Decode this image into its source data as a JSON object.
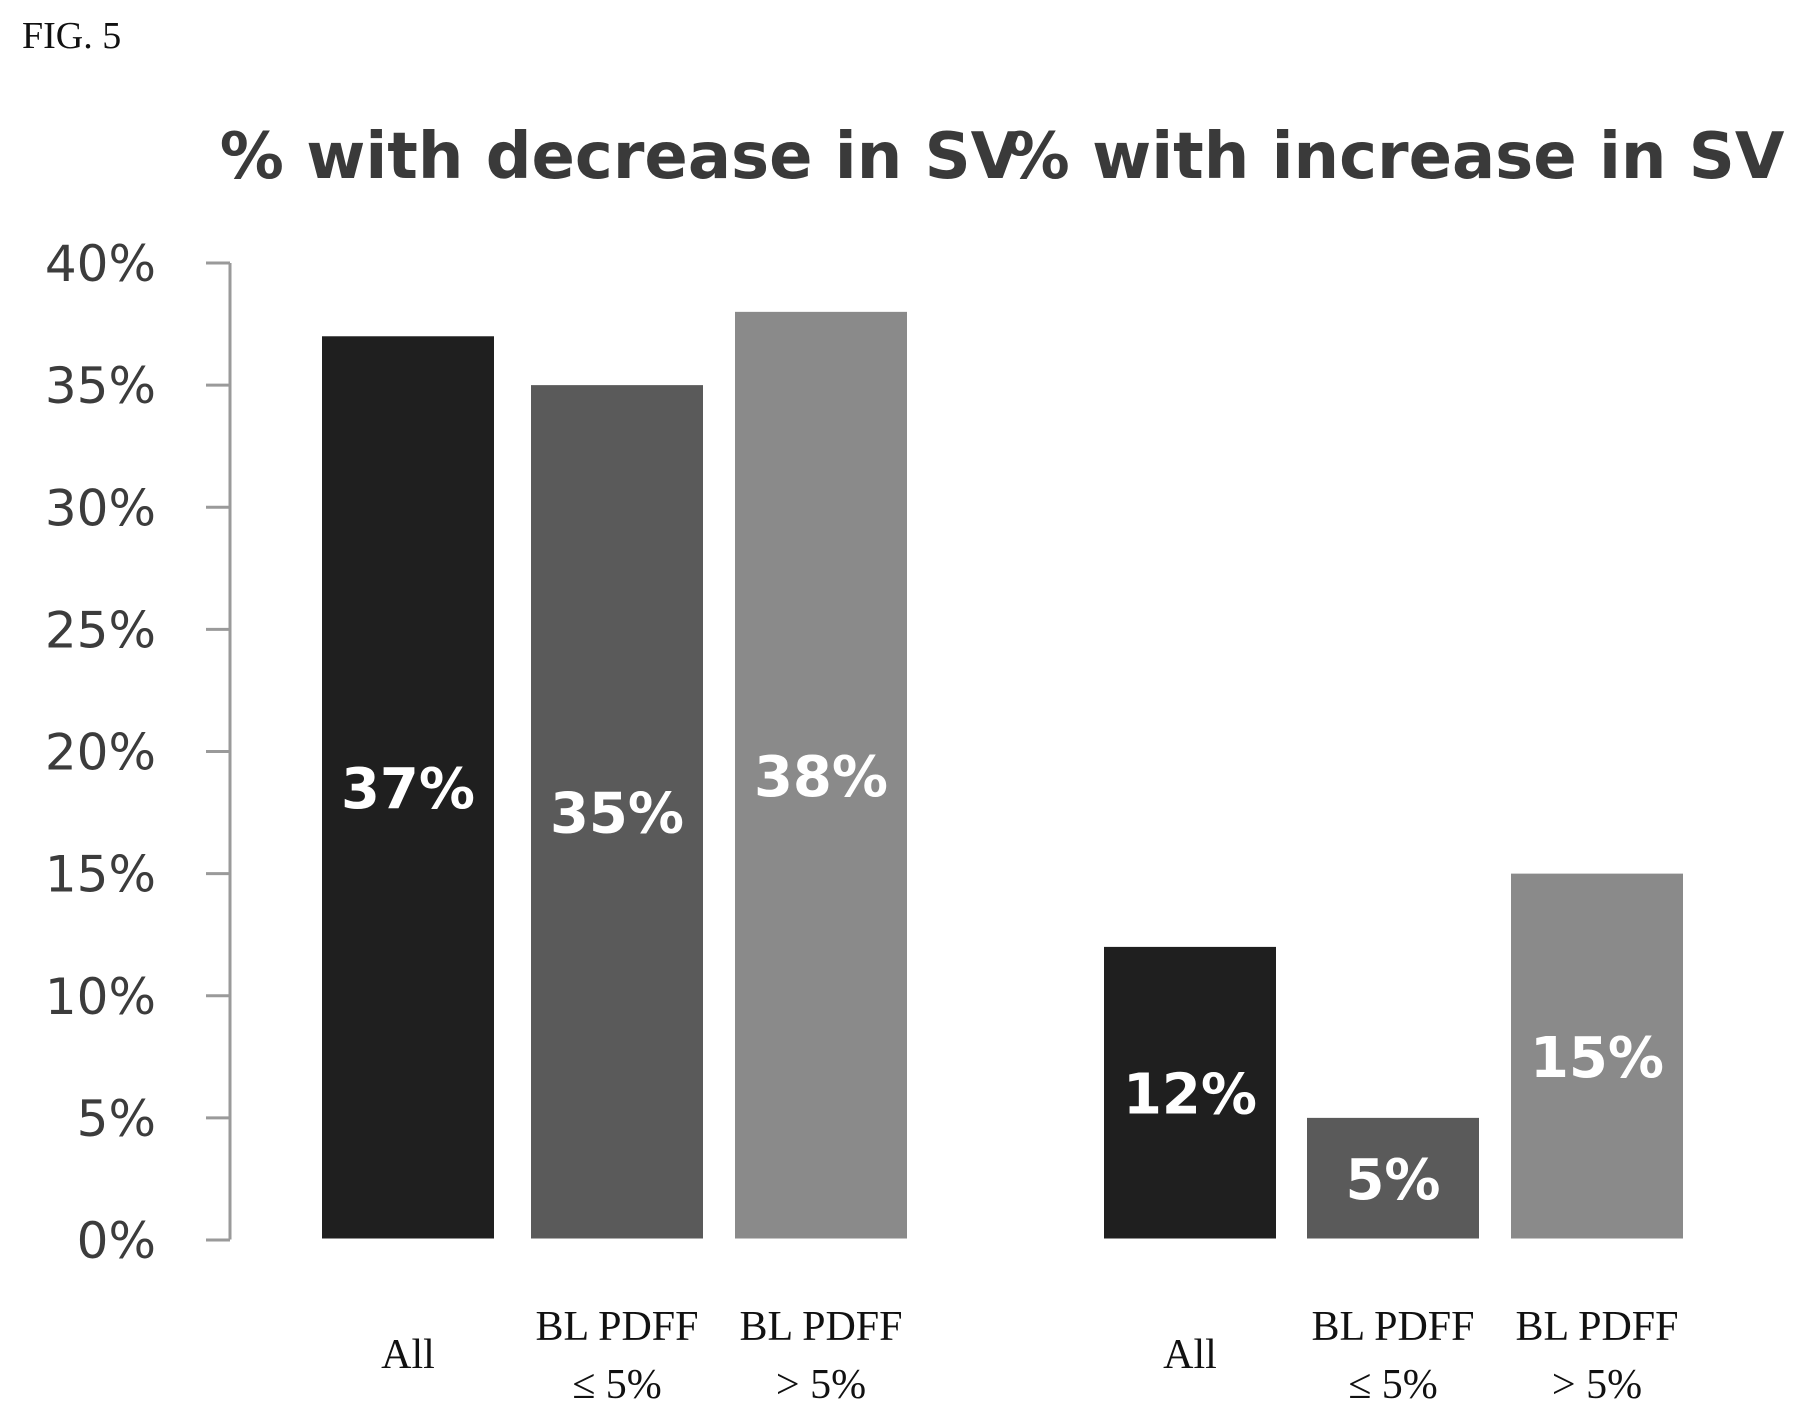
{
  "figure_label": "FIG. 5",
  "chart_data": {
    "type": "bar",
    "ylim": [
      0,
      40
    ],
    "yticks": [
      0,
      5,
      10,
      15,
      20,
      25,
      30,
      35,
      40
    ],
    "ytick_suffix": "%",
    "grid": false,
    "colors": [
      "#1f1f1f",
      "#5a5a5a",
      "#8a8a8a"
    ],
    "panels": [
      {
        "title": "% with decrease in SV",
        "categories": [
          [
            "All"
          ],
          [
            "BL PDFF",
            "≤ 5%"
          ],
          [
            "BL PDFF",
            "> 5%"
          ]
        ],
        "values": [
          37,
          35,
          38
        ],
        "labels": [
          "37%",
          "35%",
          "38%"
        ]
      },
      {
        "title": "% with increase in SV",
        "categories": [
          [
            "All"
          ],
          [
            "BL PDFF",
            "≤ 5%"
          ],
          [
            "BL PDFF",
            "> 5%"
          ]
        ],
        "values": [
          12,
          5,
          15
        ],
        "labels": [
          "12%",
          "5%",
          "15%"
        ]
      }
    ]
  }
}
